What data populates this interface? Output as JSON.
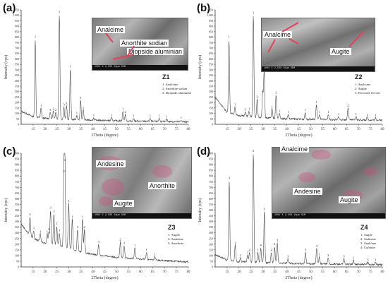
{
  "colors": {
    "curve": "#4a4a4a",
    "axis": "#333333",
    "arrow": "#e8405a",
    "highlight": "#d24a7a"
  },
  "panels": [
    {
      "id": "a",
      "label": "(a)",
      "z": "Z1",
      "legend": [
        "1: Analcime",
        "2: Anorthite sodian",
        "3: Diopside aluminian"
      ],
      "image_labels": [
        "Analcime",
        "Anorthite sodian",
        "Diopside aluminian"
      ],
      "sem_info": "10KV  X 2,500  10µm  SEM",
      "sem_scale": "10 µm"
    },
    {
      "id": "b",
      "label": "(b)",
      "z": "Z2",
      "legend": [
        "1: Analcime",
        "2: Augite",
        "3: Ferrierite ferrous"
      ],
      "image_labels": [
        "Analcime",
        "Augite"
      ],
      "sem_info": "10KV  X 2,500  10µm  SEM",
      "sem_scale": "10 µm"
    },
    {
      "id": "c",
      "label": "(c)",
      "z": "Z3",
      "legend": [
        "1: Augite",
        "2: Andesine",
        "3: Anorthite"
      ],
      "image_labels": [
        "Andesine",
        "Anorthite",
        "Augite"
      ],
      "sem_info": "10KV  X 2,500  10µm  SEM",
      "sem_scale": "10 µm"
    },
    {
      "id": "d",
      "label": "(d)",
      "z": "Z4",
      "legend": [
        "1: Augite",
        "2: Andesine",
        "3: Analcime",
        "4: Carlinite"
      ],
      "image_labels": [
        "Analcime",
        "Andesine",
        "Augite"
      ],
      "sem_info": "10KV  X 2,500  10µm  SEM",
      "sem_scale": "10 µm"
    }
  ],
  "chart_data": [
    {
      "panel": "a",
      "type": "line",
      "xlabel": "2Theta (degree)",
      "ylabel": "Intensity (cps)",
      "xlim": [
        10,
        80
      ],
      "ylim": [
        0,
        1050
      ],
      "xticks": [
        15,
        20,
        25,
        30,
        35,
        40,
        45,
        50,
        55,
        60,
        65,
        70,
        75,
        80
      ],
      "yticks": [
        0,
        50,
        100,
        150,
        200,
        250,
        300,
        350,
        400,
        450,
        500,
        550,
        600,
        650,
        700,
        750,
        800,
        850,
        900,
        950,
        1000,
        1050
      ],
      "background": [
        [
          10,
          120
        ],
        [
          15,
          70
        ],
        [
          20,
          55
        ],
        [
          30,
          45
        ],
        [
          40,
          38
        ],
        [
          50,
          32
        ],
        [
          60,
          28
        ],
        [
          70,
          25
        ],
        [
          80,
          22
        ]
      ],
      "peaks": [
        {
          "x": 15.9,
          "y": 780,
          "label": "1"
        },
        {
          "x": 18.3,
          "y": 150,
          "label": "1"
        },
        {
          "x": 22.2,
          "y": 110,
          "label": "3"
        },
        {
          "x": 23.5,
          "y": 120,
          "label": "2"
        },
        {
          "x": 24.5,
          "y": 110,
          "label": "2"
        },
        {
          "x": 26.0,
          "y": 1010,
          "label": "1"
        },
        {
          "x": 27.9,
          "y": 160,
          "label": "3"
        },
        {
          "x": 29.0,
          "y": 170,
          "label": "3"
        },
        {
          "x": 30.6,
          "y": 510,
          "label": "1"
        },
        {
          "x": 33.3,
          "y": 80,
          "label": "1"
        },
        {
          "x": 34.9,
          "y": 220,
          "label": "3"
        },
        {
          "x": 36.0,
          "y": 130,
          "label": "1"
        },
        {
          "x": 40.4,
          "y": 60,
          "label": "1"
        },
        {
          "x": 47.8,
          "y": 60,
          "label": "1"
        },
        {
          "x": 52.6,
          "y": 120,
          "label": "1"
        },
        {
          "x": 53.6,
          "y": 90,
          "label": "2"
        },
        {
          "x": 57.0,
          "y": 55,
          "label": "1"
        },
        {
          "x": 64.0,
          "y": 55,
          "label": "1"
        },
        {
          "x": 67.8,
          "y": 55,
          "label": "1"
        },
        {
          "x": 71.0,
          "y": 50,
          "label": "1"
        },
        {
          "x": 77.0,
          "y": 40,
          "label": "1"
        }
      ]
    },
    {
      "panel": "b",
      "type": "line",
      "xlabel": "2Theta (degree)",
      "ylabel": "Intensity (cps)",
      "xlim": [
        10,
        80
      ],
      "ylim": [
        0,
        1050
      ],
      "xticks": [
        15,
        20,
        25,
        30,
        35,
        40,
        45,
        50,
        55,
        60,
        65,
        70,
        75,
        80
      ],
      "yticks": [
        0,
        50,
        100,
        150,
        200,
        250,
        300,
        350,
        400,
        450,
        500,
        550,
        600,
        650,
        700,
        750,
        800,
        850,
        900,
        950,
        1000,
        1050
      ],
      "background": [
        [
          10,
          250
        ],
        [
          15,
          110
        ],
        [
          20,
          80
        ],
        [
          30,
          60
        ],
        [
          40,
          50
        ],
        [
          50,
          45
        ],
        [
          60,
          42
        ],
        [
          70,
          40
        ],
        [
          80,
          38
        ]
      ],
      "peaks": [
        {
          "x": 15.8,
          "y": 780,
          "label": "1"
        },
        {
          "x": 18.3,
          "y": 160,
          "label": "1"
        },
        {
          "x": 22.6,
          "y": 115,
          "label": "3"
        },
        {
          "x": 24.2,
          "y": 120,
          "label": "1"
        },
        {
          "x": 26.0,
          "y": 1000,
          "label": "1"
        },
        {
          "x": 27.6,
          "y": 230,
          "label": "2"
        },
        {
          "x": 29.9,
          "y": 290,
          "label": "2"
        },
        {
          "x": 30.5,
          "y": 500,
          "label": "1"
        },
        {
          "x": 33.8,
          "y": 140,
          "label": "1"
        },
        {
          "x": 35.5,
          "y": 270,
          "label": "2"
        },
        {
          "x": 36.9,
          "y": 100,
          "label": "1"
        },
        {
          "x": 40.6,
          "y": 90,
          "label": "1"
        },
        {
          "x": 47.7,
          "y": 110,
          "label": "1"
        },
        {
          "x": 52.4,
          "y": 180,
          "label": "1"
        },
        {
          "x": 53.7,
          "y": 90,
          "label": "1"
        },
        {
          "x": 57.4,
          "y": 90,
          "label": "1"
        },
        {
          "x": 61.7,
          "y": 70,
          "label": "1"
        },
        {
          "x": 65.6,
          "y": 150,
          "label": "2"
        },
        {
          "x": 69.0,
          "y": 70,
          "label": "1"
        },
        {
          "x": 73.7,
          "y": 65,
          "label": "1"
        },
        {
          "x": 77.2,
          "y": 60,
          "label": "1"
        }
      ]
    },
    {
      "panel": "c",
      "type": "line",
      "xlabel": "2Theta (degree)",
      "ylabel": "Intensity (cps)",
      "xlim": [
        10,
        80
      ],
      "ylim": [
        0,
        1000
      ],
      "xticks": [
        15,
        20,
        25,
        30,
        35,
        40,
        45,
        50,
        55,
        60,
        65,
        70,
        75,
        80
      ],
      "yticks": [
        0,
        50,
        100,
        150,
        200,
        250,
        300,
        350,
        400,
        450,
        500,
        550,
        600,
        650,
        700,
        750,
        800,
        850,
        900,
        950,
        1000
      ],
      "background": [
        [
          10,
          380
        ],
        [
          12,
          320
        ],
        [
          15,
          250
        ],
        [
          20,
          210
        ],
        [
          25,
          190
        ],
        [
          30,
          165
        ],
        [
          35,
          130
        ],
        [
          40,
          110
        ],
        [
          50,
          85
        ],
        [
          60,
          70
        ],
        [
          70,
          55
        ],
        [
          80,
          45
        ]
      ],
      "peaks": [
        {
          "x": 13.7,
          "y": 440,
          "label": "3"
        },
        {
          "x": 15.2,
          "y": 320,
          "label": "3"
        },
        {
          "x": 18.0,
          "y": 290,
          "label": "3"
        },
        {
          "x": 20.9,
          "y": 290,
          "label": "1"
        },
        {
          "x": 21.6,
          "y": 310,
          "label": "2"
        },
        {
          "x": 22.3,
          "y": 500,
          "label": "3"
        },
        {
          "x": 23.7,
          "y": 470,
          "label": "3"
        },
        {
          "x": 24.9,
          "y": 360,
          "label": "1"
        },
        {
          "x": 26.0,
          "y": 300,
          "label": "1"
        },
        {
          "x": 27.9,
          "y": 820,
          "label": "2"
        },
        {
          "x": 28.3,
          "y": 920,
          "label": "3"
        },
        {
          "x": 29.9,
          "y": 560,
          "label": "1"
        },
        {
          "x": 31.4,
          "y": 420,
          "label": "1"
        },
        {
          "x": 33.6,
          "y": 330,
          "label": "3"
        },
        {
          "x": 35.7,
          "y": 420,
          "label": "1"
        },
        {
          "x": 36.5,
          "y": 330,
          "label": "2"
        },
        {
          "x": 42.4,
          "y": 200,
          "label": "3"
        },
        {
          "x": 51.5,
          "y": 220,
          "label": "2"
        },
        {
          "x": 53.1,
          "y": 190,
          "label": "3"
        },
        {
          "x": 57.6,
          "y": 170,
          "label": "1"
        },
        {
          "x": 62.5,
          "y": 130,
          "label": "1"
        },
        {
          "x": 66.0,
          "y": 90,
          "label": "1"
        }
      ]
    },
    {
      "panel": "d",
      "type": "line",
      "xlabel": "2Theta (degree)",
      "ylabel": "Intensity (cps)",
      "xlim": [
        10,
        80
      ],
      "ylim": [
        0,
        1000
      ],
      "xticks": [
        15,
        20,
        25,
        30,
        35,
        40,
        45,
        50,
        55,
        60,
        65,
        70,
        75,
        80
      ],
      "yticks": [
        0,
        50,
        100,
        150,
        200,
        250,
        300,
        350,
        400,
        450,
        500,
        550,
        600,
        650,
        700,
        750,
        800,
        850,
        900,
        950,
        1000
      ],
      "background": [
        [
          10,
          110
        ],
        [
          15,
          60
        ],
        [
          20,
          45
        ],
        [
          30,
          38
        ],
        [
          40,
          32
        ],
        [
          50,
          28
        ],
        [
          60,
          25
        ],
        [
          70,
          22
        ],
        [
          80,
          20
        ]
      ],
      "peaks": [
        {
          "x": 15.9,
          "y": 760,
          "label": "3"
        },
        {
          "x": 18.4,
          "y": 190,
          "label": "3"
        },
        {
          "x": 20.6,
          "y": 80,
          "label": "2"
        },
        {
          "x": 23.6,
          "y": 110,
          "label": "2"
        },
        {
          "x": 24.4,
          "y": 130,
          "label": "2"
        },
        {
          "x": 26.0,
          "y": 1000,
          "label": "3"
        },
        {
          "x": 27.9,
          "y": 130,
          "label": "1"
        },
        {
          "x": 29.1,
          "y": 170,
          "label": "4"
        },
        {
          "x": 30.6,
          "y": 490,
          "label": "3"
        },
        {
          "x": 33.5,
          "y": 130,
          "label": "2"
        },
        {
          "x": 34.9,
          "y": 180,
          "label": "2"
        },
        {
          "x": 36.0,
          "y": 210,
          "label": "3"
        },
        {
          "x": 40.5,
          "y": 70,
          "label": "3"
        },
        {
          "x": 47.8,
          "y": 130,
          "label": "3"
        },
        {
          "x": 52.5,
          "y": 160,
          "label": "3"
        },
        {
          "x": 53.6,
          "y": 90,
          "label": "1"
        },
        {
          "x": 57.3,
          "y": 80,
          "label": "3"
        },
        {
          "x": 63.9,
          "y": 70,
          "label": "3"
        },
        {
          "x": 67.9,
          "y": 60,
          "label": "1"
        },
        {
          "x": 73.9,
          "y": 45,
          "label": "3"
        },
        {
          "x": 77.1,
          "y": 40,
          "label": "3"
        }
      ]
    }
  ]
}
